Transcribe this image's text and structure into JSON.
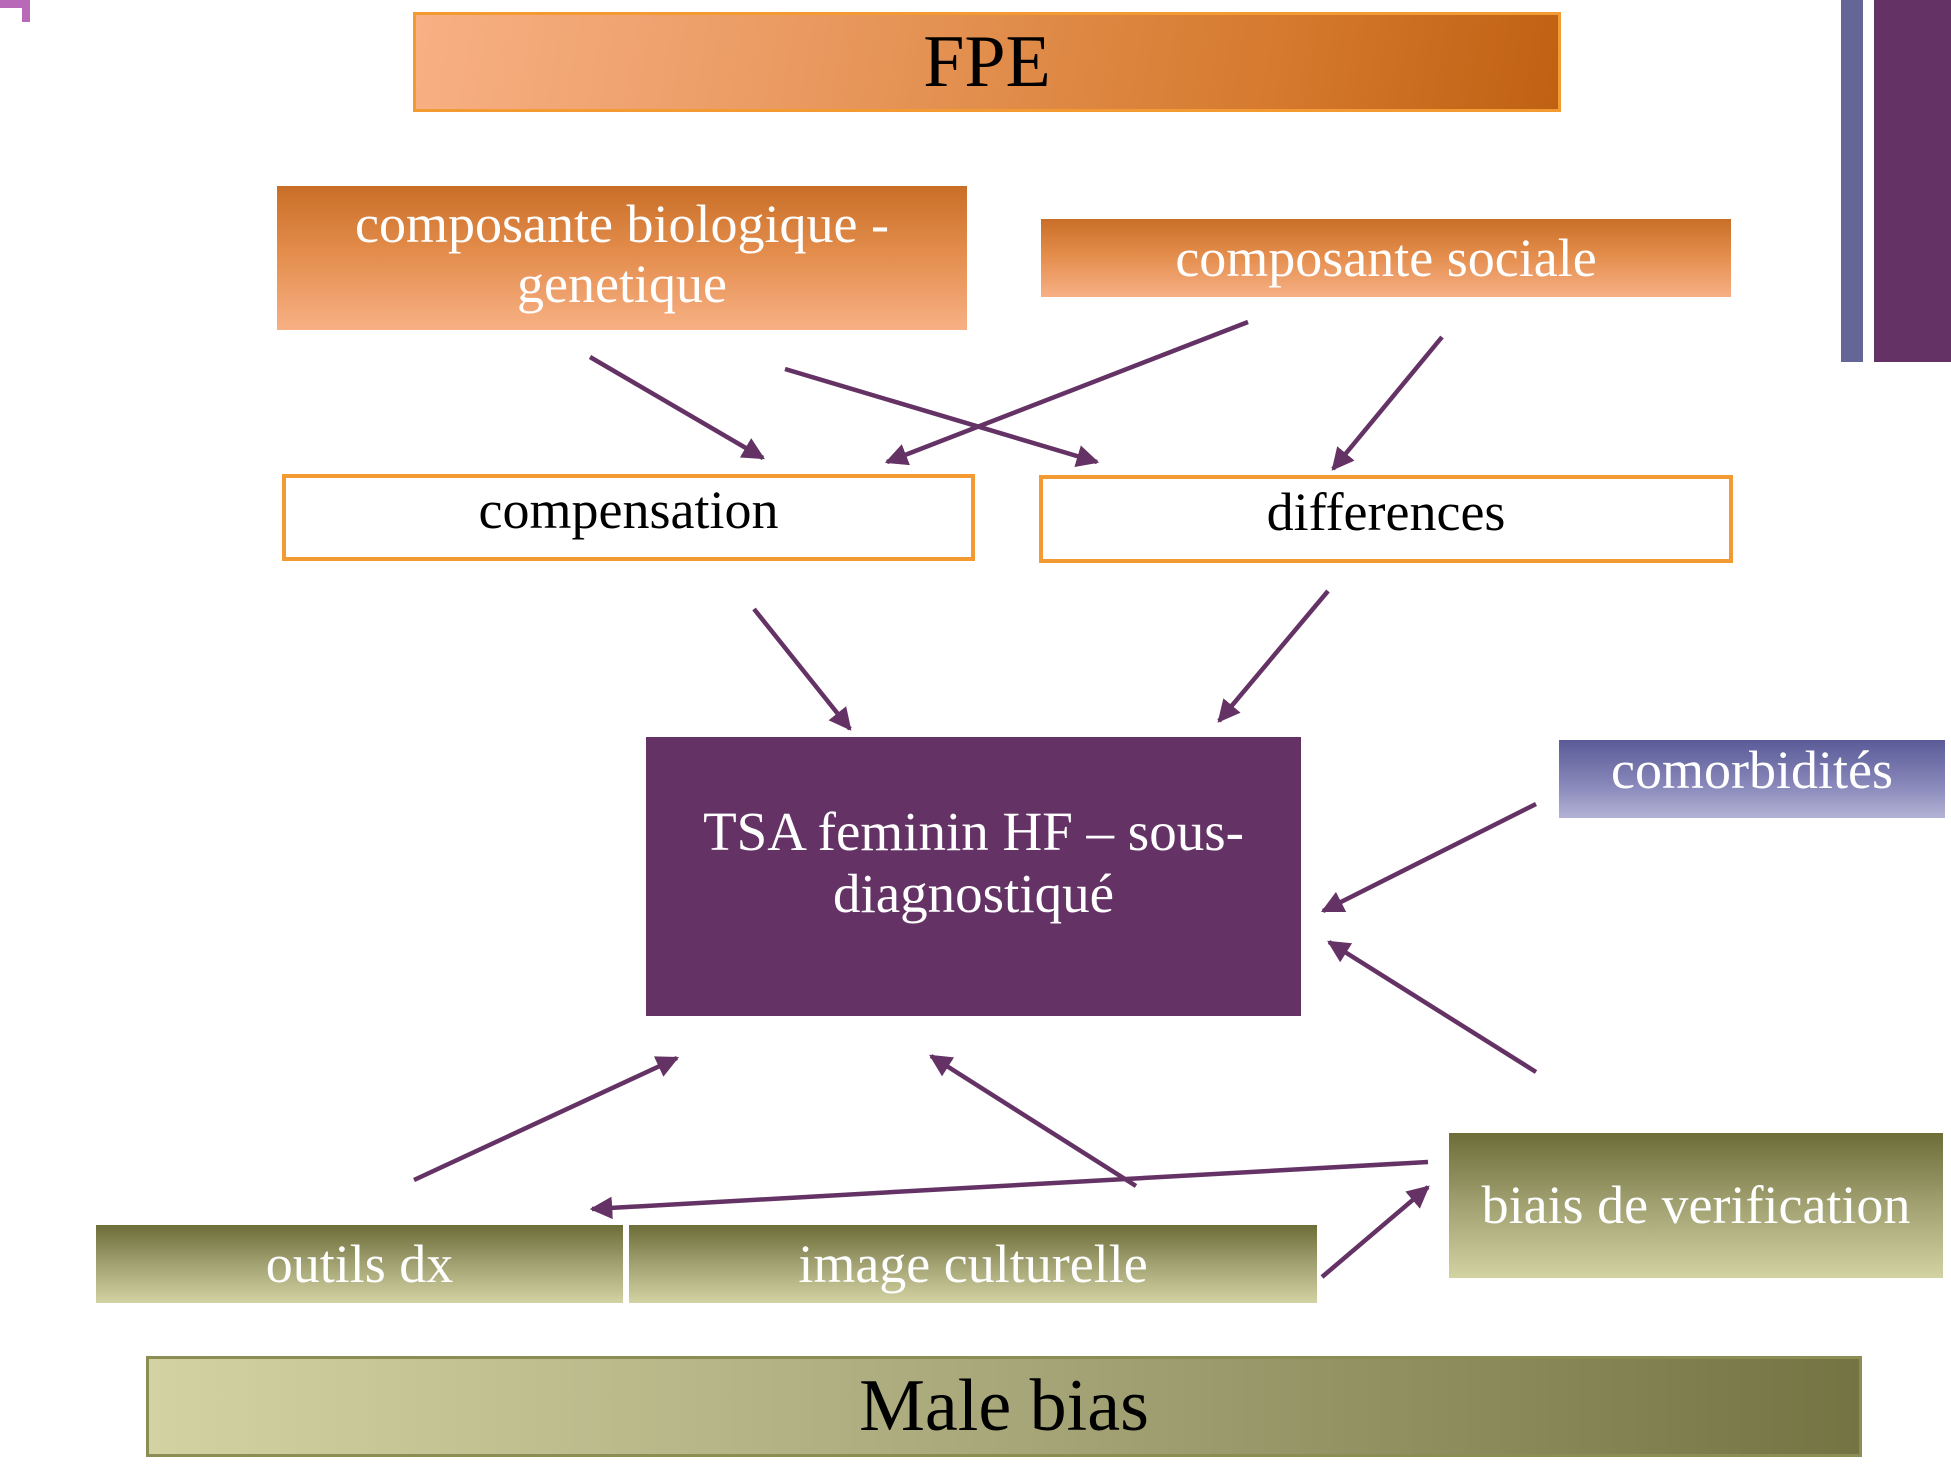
{
  "title": "FPE",
  "nodes": {
    "bio": "composante biologique - genetique",
    "social": "composante sociale",
    "compensation": "compensation",
    "differences": "differences",
    "tsa": "TSA feminin HF – sous-diagnostiqué",
    "comorbidites": "comorbidités",
    "biais": "biais de verification",
    "outils": "outils dx",
    "image": "image culturelle"
  },
  "footer": "Male bias",
  "colors": {
    "orange": "#e38c4b",
    "orange_border": "#f39a33",
    "purple": "#643264",
    "slate": "#656698",
    "olive": "#a1a172",
    "arrow": "#643264"
  },
  "edges": [
    {
      "from": "bio",
      "to": "compensation"
    },
    {
      "from": "bio",
      "to": "differences"
    },
    {
      "from": "social",
      "to": "compensation"
    },
    {
      "from": "social",
      "to": "differences"
    },
    {
      "from": "compensation",
      "to": "tsa"
    },
    {
      "from": "differences",
      "to": "tsa"
    },
    {
      "from": "comorbidites",
      "to": "tsa"
    },
    {
      "from": "biais",
      "to": "tsa"
    },
    {
      "from": "outils",
      "to": "tsa"
    },
    {
      "from": "image",
      "to": "tsa"
    },
    {
      "from": "biais",
      "to": "outils"
    },
    {
      "from": "image",
      "to": "biais"
    }
  ]
}
